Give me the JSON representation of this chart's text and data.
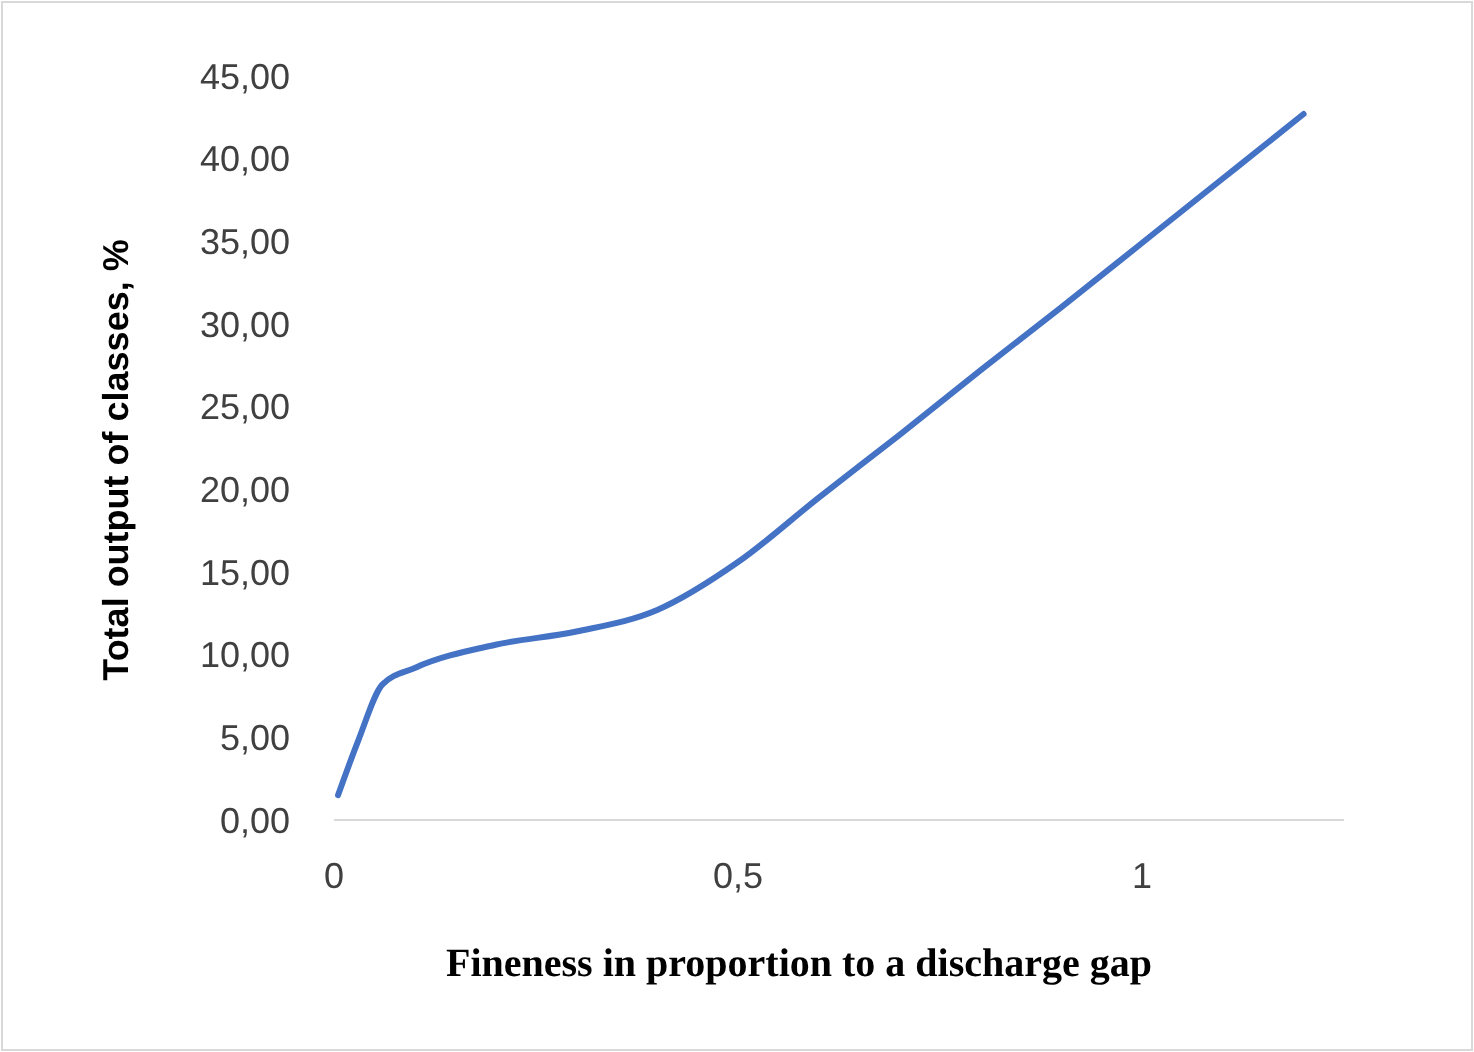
{
  "chart_data": {
    "type": "line",
    "xlabel": "Fineness in proportion  to a discharge gap",
    "ylabel": "Total output of classes, %",
    "x": [
      0.005,
      0.03,
      0.06,
      0.1,
      0.2,
      0.3,
      0.4,
      0.5,
      0.6,
      0.7,
      0.8,
      0.9,
      1.0,
      1.1,
      1.2
    ],
    "series": [
      {
        "color": "#4472c4",
        "values": [
          1.5,
          4.8,
          8.2,
          9.2,
          10.6,
          11.4,
          12.7,
          15.6,
          19.5,
          23.3,
          27.2,
          31,
          34.9,
          38.8,
          42.7
        ]
      }
    ],
    "xlim": [
      0,
      1.25
    ],
    "xticks": [
      0,
      {
        "value": 0.5,
        "label": "0,5"
      },
      1
    ],
    "ylim": [
      0,
      45
    ],
    "yticks": [
      {
        "value": 0,
        "label": "0,00"
      },
      {
        "value": 5,
        "label": "5,00"
      },
      {
        "value": 10,
        "label": "10,00"
      },
      {
        "value": 15,
        "label": "15,00"
      },
      {
        "value": 20,
        "label": "20,00"
      },
      {
        "value": 25,
        "label": "25,00"
      },
      {
        "value": 30,
        "label": "30,00"
      },
      {
        "value": 35,
        "label": "35,00"
      },
      {
        "value": 40,
        "label": "40,00"
      },
      {
        "value": 45,
        "label": "45,00"
      }
    ],
    "grid": false,
    "marker": "none",
    "line_style": "solid"
  }
}
